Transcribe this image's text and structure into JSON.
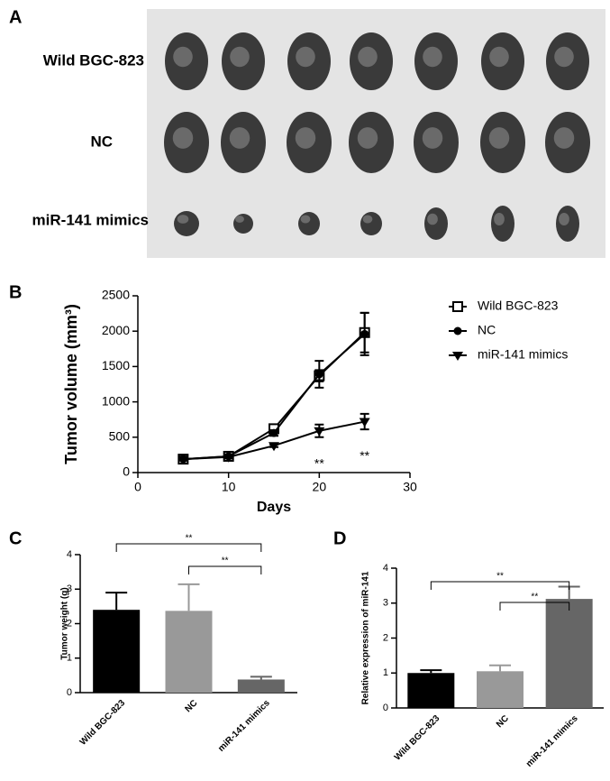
{
  "panel_a": {
    "panel_label": "A",
    "rows": [
      "Wild BGC-823",
      "NC",
      "miR-141 mimics"
    ]
  },
  "chart_data": [
    {
      "type": "line",
      "panel_label": "B",
      "x_label": "Days",
      "y_label": "Tumor volume (mm³)",
      "x": [
        5,
        10,
        15,
        20,
        25
      ],
      "xlim": [
        0,
        30
      ],
      "xticks": [
        0,
        10,
        20,
        30
      ],
      "ylim": [
        0,
        2500
      ],
      "yticks": [
        0,
        500,
        1000,
        1500,
        2000,
        2500
      ],
      "legend": "right",
      "series": [
        {
          "name": "Wild BGC-823",
          "color": "#000000",
          "marker": "open-square",
          "values": [
            190,
            230,
            620,
            1370,
            1980
          ],
          "errors": [
            20,
            20,
            40,
            80,
            280
          ]
        },
        {
          "name": "NC",
          "color": "#000000",
          "marker": "circle",
          "values": [
            190,
            230,
            560,
            1390,
            1960
          ],
          "errors": [
            20,
            20,
            40,
            190,
            300
          ]
        },
        {
          "name": "miR-141 mimics",
          "color": "#000000",
          "marker": "triangle-down",
          "values": [
            190,
            220,
            380,
            590,
            720
          ],
          "errors": [
            20,
            20,
            20,
            90,
            110
          ]
        }
      ],
      "annotations": [
        {
          "text": "**",
          "x": 20
        },
        {
          "text": "**",
          "x": 25
        }
      ]
    },
    {
      "type": "bar",
      "panel_label": "C",
      "y_label": "Tumor weight (g)",
      "categories": [
        "Wild BGC-823",
        "NC",
        "miR-141 mimics"
      ],
      "values": [
        2.4,
        2.37,
        0.38
      ],
      "errors": [
        0.5,
        0.77,
        0.08
      ],
      "colors": [
        "#000000",
        "#999999",
        "#666666"
      ],
      "ylim": [
        0,
        4
      ],
      "yticks": [
        0,
        1,
        2,
        3,
        4
      ],
      "brackets": [
        {
          "from": 0,
          "to": 2,
          "label": "**"
        },
        {
          "from": 1,
          "to": 2,
          "label": "**"
        }
      ]
    },
    {
      "type": "bar",
      "panel_label": "D",
      "y_label": "Relative expression of miR-141",
      "categories": [
        "Wild BGC-823",
        "NC",
        "miR-141 mimics"
      ],
      "values": [
        1.0,
        1.05,
        3.12
      ],
      "errors": [
        0.08,
        0.17,
        0.35
      ],
      "colors": [
        "#000000",
        "#999999",
        "#666666"
      ],
      "ylim": [
        0,
        4
      ],
      "yticks": [
        0,
        1,
        2,
        3,
        4
      ],
      "brackets": [
        {
          "from": 0,
          "to": 2,
          "label": "**"
        },
        {
          "from": 1,
          "to": 2,
          "label": "**"
        }
      ]
    }
  ]
}
